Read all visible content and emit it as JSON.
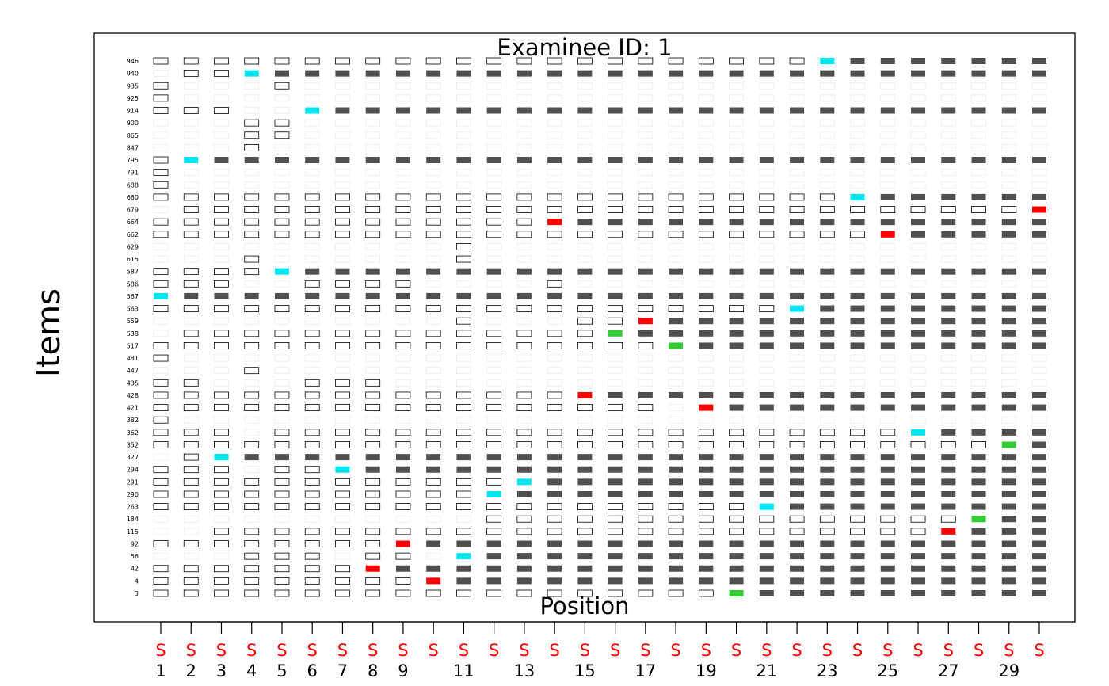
{
  "chart_data": {
    "type": "heatmap",
    "title": "Examinee ID: 1",
    "xlabel": "Position",
    "ylabel": "Items",
    "x_tick_labels": [
      "1",
      "",
      "3",
      "",
      "5",
      "",
      "7",
      "",
      "9",
      "",
      "11",
      "",
      "13",
      "",
      "15",
      "",
      "17",
      "",
      "19",
      "",
      "21",
      "",
      "23",
      "",
      "25",
      "",
      "27",
      "",
      "29",
      ""
    ],
    "x_tick_labels_visible_all": [
      "1",
      "2",
      "3",
      "4",
      "5",
      "6",
      "7",
      "8",
      "9",
      "",
      "11",
      "",
      "13",
      "",
      "15",
      "",
      "17",
      "",
      "19",
      "",
      "21",
      "",
      "23",
      "",
      "25",
      "",
      "27",
      "",
      "29",
      ""
    ],
    "stage_marker": "S",
    "n_positions": 30,
    "items": [
      "946",
      "940",
      "935",
      "925",
      "914",
      "900",
      "865",
      "847",
      "795",
      "791",
      "688",
      "680",
      "679",
      "664",
      "662",
      "629",
      "615",
      "587",
      "586",
      "567",
      "563",
      "559",
      "538",
      "517",
      "481",
      "447",
      "435",
      "428",
      "421",
      "382",
      "362",
      "352",
      "327",
      "294",
      "291",
      "290",
      "263",
      "184",
      "115",
      "92",
      "56",
      "42",
      "4",
      "3"
    ],
    "legend": {
      "available": "outlined box (item available)",
      "unavailable": "faint box",
      "administered": "dark box (already administered)",
      "selected_correct": "cyan",
      "selected_incorrect": "red",
      "selected_other": "green"
    },
    "colors": {
      "available": "#ffffff",
      "available_border": "#000000",
      "faint_border": "#e6e6e6",
      "administered": "#505050",
      "cyan": "#00e5ee",
      "red": "#ff0000",
      "green": "#33cc33",
      "stage_marker": "#ff0000"
    },
    "availability_rows": [
      "AAAAAAAAAAAAAAAAAAAAAA",
      "_AA",
      "A___A",
      "A",
      "AAA__",
      "___AA",
      "___AA",
      "___A",
      "A",
      "A",
      "A",
      "AAAAAAAAAAAAAAAAAAAAAAA",
      "_AAAAAAAAAAAAAAAAAAAAAAAAAAAA",
      "AAAAAAAAAAAAA",
      "AAAAAAAAAAAAAAAAAAAAAAAAAA",
      "__________A",
      "___A______A",
      "AAAA",
      "AAA__AAAA____A",
      "",
      "AAAAAAAAAAAAAAAAAAAAA",
      "__________A___AA__AAA",
      "_AAAAAAAAAAAAAAAAAAAAA",
      "AAAAAAAAAAAAAAAAAAA",
      "A",
      "___A",
      "AA___AAA",
      "AAAAAAAAAAAAAA",
      "AAAAAAAAAAAAAAAAA",
      "A",
      "AAA_AAAAAAAAAAAAAAAAAAAAAAA",
      "AAAAAAAAAAAAAAAAAAAAAAAAAAAA",
      "_AA",
      "AAA_AA",
      "AAAAAAAAAAAA",
      "AAAAAAAAAAA",
      "AAAAAAAAAAAAAAAAAAAA",
      "___________AAAAAAAAAAAAAAAAAA",
      "__AAAAAAAAAAAAAAAAAAAAAAAAA",
      "AAAAAAAA",
      "___AAA_AA_",
      "AAAAAAA",
      "AAAAAAAAA",
      "AAAAAAAAAAAAAAAAAAA"
    ],
    "selections": [
      {
        "item": "946",
        "position": 23,
        "status": "cyan"
      },
      {
        "item": "940",
        "position": 4,
        "status": "cyan"
      },
      {
        "item": "914",
        "position": 6,
        "status": "cyan"
      },
      {
        "item": "795",
        "position": 2,
        "status": "cyan"
      },
      {
        "item": "680",
        "position": 24,
        "status": "cyan"
      },
      {
        "item": "679",
        "position": 30,
        "status": "red"
      },
      {
        "item": "664",
        "position": 14,
        "status": "red"
      },
      {
        "item": "662",
        "position": 25,
        "status": "red"
      },
      {
        "item": "587",
        "position": 5,
        "status": "cyan"
      },
      {
        "item": "567",
        "position": 1,
        "status": "cyan"
      },
      {
        "item": "563",
        "position": 22,
        "status": "cyan"
      },
      {
        "item": "559",
        "position": 17,
        "status": "red"
      },
      {
        "item": "538",
        "position": 16,
        "status": "green"
      },
      {
        "item": "517",
        "position": 18,
        "status": "green"
      },
      {
        "item": "428",
        "position": 15,
        "status": "red"
      },
      {
        "item": "421",
        "position": 19,
        "status": "red"
      },
      {
        "item": "362",
        "position": 26,
        "status": "cyan"
      },
      {
        "item": "352",
        "position": 29,
        "status": "green"
      },
      {
        "item": "327",
        "position": 3,
        "status": "cyan"
      },
      {
        "item": "294",
        "position": 7,
        "status": "cyan"
      },
      {
        "item": "291",
        "position": 13,
        "status": "cyan"
      },
      {
        "item": "290",
        "position": 12,
        "status": "cyan"
      },
      {
        "item": "263",
        "position": 21,
        "status": "cyan"
      },
      {
        "item": "184",
        "position": 28,
        "status": "green"
      },
      {
        "item": "115",
        "position": 27,
        "status": "red"
      },
      {
        "item": "92",
        "position": 9,
        "status": "red"
      },
      {
        "item": "56",
        "position": 11,
        "status": "cyan"
      },
      {
        "item": "42",
        "position": 8,
        "status": "red"
      },
      {
        "item": "4",
        "position": 10,
        "status": "red"
      },
      {
        "item": "3",
        "position": 20,
        "status": "green"
      }
    ]
  }
}
